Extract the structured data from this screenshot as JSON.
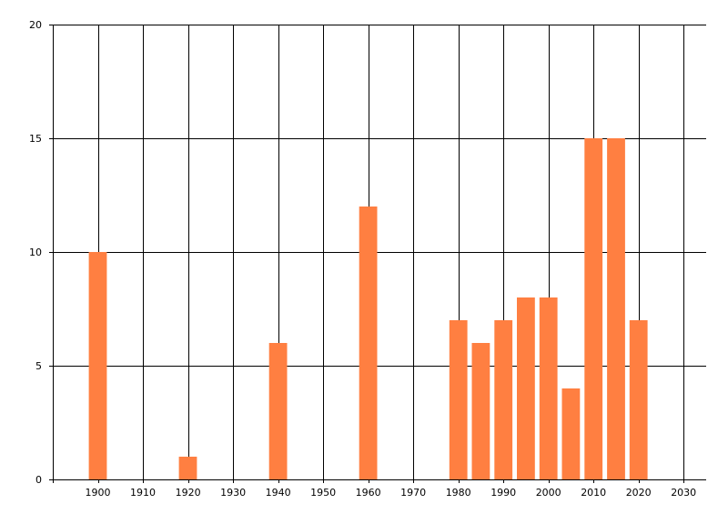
{
  "colors": {
    "bar": "#ff7f41",
    "grid": "#000000",
    "axis": "#000000",
    "background": "#ffffff"
  },
  "chart_data": {
    "type": "bar",
    "title": "",
    "xlabel": "",
    "ylabel": "",
    "xlim": [
      1890,
      2035
    ],
    "ylim": [
      0,
      20
    ],
    "x_ticks": [
      1900,
      1910,
      1920,
      1930,
      1940,
      1950,
      1960,
      1970,
      1980,
      1990,
      2000,
      2010,
      2020,
      2030
    ],
    "y_ticks": [
      0,
      5,
      10,
      15,
      20
    ],
    "grid": true,
    "legend": "none",
    "bar_width": 4,
    "series": [
      {
        "x": [
          1900,
          1920,
          1940,
          1960,
          1980,
          1985,
          1990,
          1995,
          2000,
          2005,
          2010,
          2015,
          2020
        ],
        "values": [
          10,
          1,
          6,
          12,
          7,
          6,
          7,
          8,
          8,
          4,
          15,
          15,
          7
        ]
      }
    ]
  }
}
